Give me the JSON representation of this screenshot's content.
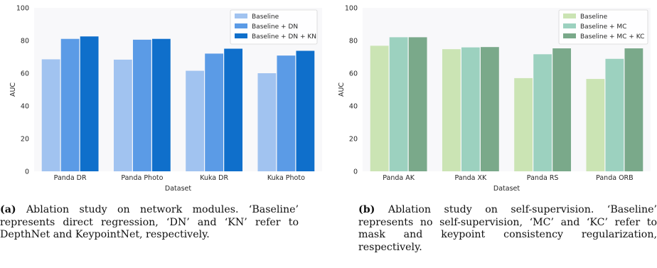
{
  "figures": [
    {
      "id": "a",
      "caption_tag": "(a)",
      "caption_text": "Ablation study on network modules. ‘Baseline’ represents direct regression, ‘DN’ and ‘KN’ refer to DepthNet and KeypointNet, respectively.",
      "colors": [
        "#a1c3f0",
        "#5b9be6",
        "#0f6fcb"
      ],
      "legend_position": "top-right"
    },
    {
      "id": "b",
      "caption_tag": "(b)",
      "caption_text": "Ablation study on self-supervision. ‘Baseline’ represents no self-supervision, ‘MC’ and ‘KC’ refer to mask and keypoint consistency regularization, respectively.",
      "colors": [
        "#cbe4b4",
        "#9cd1bf",
        "#7aa98a"
      ],
      "legend_position": "top-right"
    }
  ],
  "chart_data": [
    {
      "type": "bar",
      "xlabel": "Dataset",
      "ylabel": "AUC",
      "ylim": [
        0,
        100
      ],
      "yticks": [
        0,
        20,
        40,
        60,
        80,
        100
      ],
      "grid": false,
      "categories": [
        "Panda DR",
        "Panda Photo",
        "Kuka DR",
        "Kuka Photo"
      ],
      "series": [
        {
          "name": "Baseline",
          "values": [
            68.5,
            68.3,
            61.5,
            60.0
          ]
        },
        {
          "name": "Baseline + DN",
          "values": [
            81.0,
            80.5,
            72.0,
            70.8
          ]
        },
        {
          "name": "Baseline + DN + KN",
          "values": [
            82.5,
            81.0,
            75.0,
            73.7
          ]
        }
      ]
    },
    {
      "type": "bar",
      "xlabel": "Dataset",
      "ylabel": "AUC",
      "ylim": [
        0,
        100
      ],
      "yticks": [
        0,
        20,
        40,
        60,
        80,
        100
      ],
      "grid": false,
      "categories": [
        "Panda AK",
        "Panda XK",
        "Panda RS",
        "Panda ORB"
      ],
      "series": [
        {
          "name": "Baseline",
          "values": [
            76.8,
            74.7,
            57.0,
            56.5
          ]
        },
        {
          "name": "Baseline + MC",
          "values": [
            82.0,
            75.8,
            71.6,
            68.8
          ]
        },
        {
          "name": "Baseline + MC + KC",
          "values": [
            82.0,
            76.0,
            75.2,
            75.2
          ]
        }
      ]
    }
  ]
}
